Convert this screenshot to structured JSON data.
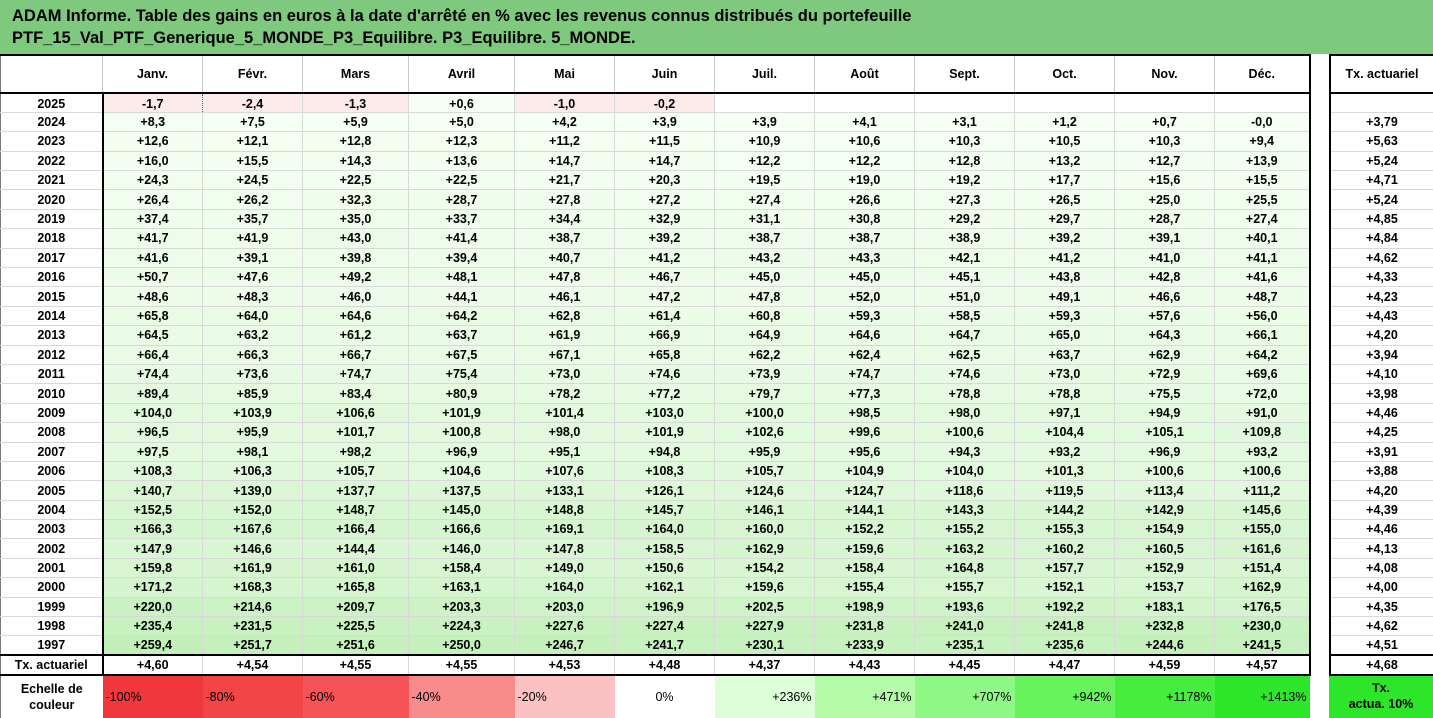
{
  "header": {
    "line1": "ADAM Informe. Table des gains en euros à la date d'arrêté en % avec les revenus connus distribués du portefeuille",
    "line2": "PTF_15_Val_PTF_Generique_5_MONDE_P3_Equilibre. P3_Equilibre. 5_MONDE."
  },
  "months": [
    "Janv.",
    "Févr.",
    "Mars",
    "Avril",
    "Mai",
    "Juin",
    "Juil.",
    "Août",
    "Sept.",
    "Oct.",
    "Nov.",
    "Déc."
  ],
  "right_header": "Tx. actuariel",
  "rows": [
    {
      "year": "2025",
      "values": [
        "-1,7",
        "-2,4",
        "-1,3",
        "+0,6",
        "-1,0",
        "-0,2",
        "",
        "",
        "",
        "",
        "",
        ""
      ],
      "rate": ""
    },
    {
      "year": "2024",
      "values": [
        "+8,3",
        "+7,5",
        "+5,9",
        "+5,0",
        "+4,2",
        "+3,9",
        "+3,9",
        "+4,1",
        "+3,1",
        "+1,2",
        "+0,7",
        "-0,0"
      ],
      "rate": "+3,79"
    },
    {
      "year": "2023",
      "values": [
        "+12,6",
        "+12,1",
        "+12,8",
        "+12,3",
        "+11,2",
        "+11,5",
        "+10,9",
        "+10,6",
        "+10,3",
        "+10,5",
        "+10,3",
        "+9,4"
      ],
      "rate": "+5,63"
    },
    {
      "year": "2022",
      "values": [
        "+16,0",
        "+15,5",
        "+14,3",
        "+13,6",
        "+14,7",
        "+14,7",
        "+12,2",
        "+12,2",
        "+12,8",
        "+13,2",
        "+12,7",
        "+13,9"
      ],
      "rate": "+5,24"
    },
    {
      "year": "2021",
      "values": [
        "+24,3",
        "+24,5",
        "+22,5",
        "+22,5",
        "+21,7",
        "+20,3",
        "+19,5",
        "+19,0",
        "+19,2",
        "+17,7",
        "+15,6",
        "+15,5"
      ],
      "rate": "+4,71"
    },
    {
      "year": "2020",
      "values": [
        "+26,4",
        "+26,2",
        "+32,3",
        "+28,7",
        "+27,8",
        "+27,2",
        "+27,4",
        "+26,6",
        "+27,3",
        "+26,5",
        "+25,0",
        "+25,5"
      ],
      "rate": "+5,24"
    },
    {
      "year": "2019",
      "values": [
        "+37,4",
        "+35,7",
        "+35,0",
        "+33,7",
        "+34,4",
        "+32,9",
        "+31,1",
        "+30,8",
        "+29,2",
        "+29,7",
        "+28,7",
        "+27,4"
      ],
      "rate": "+4,85"
    },
    {
      "year": "2018",
      "values": [
        "+41,7",
        "+41,9",
        "+43,0",
        "+41,4",
        "+38,7",
        "+39,2",
        "+38,7",
        "+38,7",
        "+38,9",
        "+39,2",
        "+39,1",
        "+40,1"
      ],
      "rate": "+4,84"
    },
    {
      "year": "2017",
      "values": [
        "+41,6",
        "+39,1",
        "+39,8",
        "+39,4",
        "+40,7",
        "+41,2",
        "+43,2",
        "+43,3",
        "+42,1",
        "+41,2",
        "+41,0",
        "+41,1"
      ],
      "rate": "+4,62"
    },
    {
      "year": "2016",
      "values": [
        "+50,7",
        "+47,6",
        "+49,2",
        "+48,1",
        "+47,8",
        "+46,7",
        "+45,0",
        "+45,0",
        "+45,1",
        "+43,8",
        "+42,8",
        "+41,6"
      ],
      "rate": "+4,33"
    },
    {
      "year": "2015",
      "values": [
        "+48,6",
        "+48,3",
        "+46,0",
        "+44,1",
        "+46,1",
        "+47,2",
        "+47,8",
        "+52,0",
        "+51,0",
        "+49,1",
        "+46,6",
        "+48,7"
      ],
      "rate": "+4,23"
    },
    {
      "year": "2014",
      "values": [
        "+65,8",
        "+64,0",
        "+64,6",
        "+64,2",
        "+62,8",
        "+61,4",
        "+60,8",
        "+59,3",
        "+58,5",
        "+59,3",
        "+57,6",
        "+56,0"
      ],
      "rate": "+4,43"
    },
    {
      "year": "2013",
      "values": [
        "+64,5",
        "+63,2",
        "+61,2",
        "+63,7",
        "+61,9",
        "+66,9",
        "+64,9",
        "+64,6",
        "+64,7",
        "+65,0",
        "+64,3",
        "+66,1"
      ],
      "rate": "+4,20"
    },
    {
      "year": "2012",
      "values": [
        "+66,4",
        "+66,3",
        "+66,7",
        "+67,5",
        "+67,1",
        "+65,8",
        "+62,2",
        "+62,4",
        "+62,5",
        "+63,7",
        "+62,9",
        "+64,2"
      ],
      "rate": "+3,94"
    },
    {
      "year": "2011",
      "values": [
        "+74,4",
        "+73,6",
        "+74,7",
        "+75,4",
        "+73,0",
        "+74,6",
        "+73,9",
        "+74,7",
        "+74,6",
        "+73,0",
        "+72,9",
        "+69,6"
      ],
      "rate": "+4,10"
    },
    {
      "year": "2010",
      "values": [
        "+89,4",
        "+85,9",
        "+83,4",
        "+80,9",
        "+78,2",
        "+77,2",
        "+79,7",
        "+77,3",
        "+78,8",
        "+78,8",
        "+75,5",
        "+72,0"
      ],
      "rate": "+3,98"
    },
    {
      "year": "2009",
      "values": [
        "+104,0",
        "+103,9",
        "+106,6",
        "+101,9",
        "+101,4",
        "+103,0",
        "+100,0",
        "+98,5",
        "+98,0",
        "+97,1",
        "+94,9",
        "+91,0"
      ],
      "rate": "+4,46"
    },
    {
      "year": "2008",
      "values": [
        "+96,5",
        "+95,9",
        "+101,7",
        "+100,8",
        "+98,0",
        "+101,9",
        "+102,6",
        "+99,6",
        "+100,6",
        "+104,4",
        "+105,1",
        "+109,8"
      ],
      "rate": "+4,25"
    },
    {
      "year": "2007",
      "values": [
        "+97,5",
        "+98,1",
        "+98,2",
        "+96,9",
        "+95,1",
        "+94,8",
        "+95,9",
        "+95,6",
        "+94,3",
        "+93,2",
        "+96,9",
        "+93,2"
      ],
      "rate": "+3,91"
    },
    {
      "year": "2006",
      "values": [
        "+108,3",
        "+106,3",
        "+105,7",
        "+104,6",
        "+107,6",
        "+108,3",
        "+105,7",
        "+104,9",
        "+104,0",
        "+101,3",
        "+100,6",
        "+100,6"
      ],
      "rate": "+3,88"
    },
    {
      "year": "2005",
      "values": [
        "+140,7",
        "+139,0",
        "+137,7",
        "+137,5",
        "+133,1",
        "+126,1",
        "+124,6",
        "+124,7",
        "+118,6",
        "+119,5",
        "+113,4",
        "+111,2"
      ],
      "rate": "+4,20"
    },
    {
      "year": "2004",
      "values": [
        "+152,5",
        "+152,0",
        "+148,7",
        "+145,0",
        "+148,8",
        "+145,7",
        "+146,1",
        "+144,1",
        "+143,3",
        "+144,2",
        "+142,9",
        "+145,6"
      ],
      "rate": "+4,39"
    },
    {
      "year": "2003",
      "values": [
        "+166,3",
        "+167,6",
        "+166,4",
        "+166,6",
        "+169,1",
        "+164,0",
        "+160,0",
        "+152,2",
        "+155,2",
        "+155,3",
        "+154,9",
        "+155,0"
      ],
      "rate": "+4,46"
    },
    {
      "year": "2002",
      "values": [
        "+147,9",
        "+146,6",
        "+144,4",
        "+146,0",
        "+147,8",
        "+158,5",
        "+162,9",
        "+159,6",
        "+163,2",
        "+160,2",
        "+160,5",
        "+161,6"
      ],
      "rate": "+4,13"
    },
    {
      "year": "2001",
      "values": [
        "+159,8",
        "+161,9",
        "+161,0",
        "+158,4",
        "+149,0",
        "+150,6",
        "+154,2",
        "+158,4",
        "+164,8",
        "+157,7",
        "+152,9",
        "+151,4"
      ],
      "rate": "+4,08"
    },
    {
      "year": "2000",
      "values": [
        "+171,2",
        "+168,3",
        "+165,8",
        "+163,1",
        "+164,0",
        "+162,1",
        "+159,6",
        "+155,4",
        "+155,7",
        "+152,1",
        "+153,7",
        "+162,9"
      ],
      "rate": "+4,00"
    },
    {
      "year": "1999",
      "values": [
        "+220,0",
        "+214,6",
        "+209,7",
        "+203,3",
        "+203,0",
        "+196,9",
        "+202,5",
        "+198,9",
        "+193,6",
        "+192,2",
        "+183,1",
        "+176,5"
      ],
      "rate": "+4,35"
    },
    {
      "year": "1998",
      "values": [
        "+235,4",
        "+231,5",
        "+225,5",
        "+224,3",
        "+227,6",
        "+227,4",
        "+227,9",
        "+231,8",
        "+241,0",
        "+241,8",
        "+232,8",
        "+230,0"
      ],
      "rate": "+4,62"
    },
    {
      "year": "1997",
      "values": [
        "+259,4",
        "+251,7",
        "+251,6",
        "+250,0",
        "+246,7",
        "+241,7",
        "+230,1",
        "+233,9",
        "+235,1",
        "+235,6",
        "+244,6",
        "+241,5"
      ],
      "rate": "+4,51"
    }
  ],
  "bottom_row": {
    "label": "Tx. actuariel",
    "values": [
      "+4,60",
      "+4,54",
      "+4,55",
      "+4,55",
      "+4,53",
      "+4,48",
      "+4,37",
      "+4,43",
      "+4,45",
      "+4,47",
      "+4,59",
      "+4,57"
    ],
    "rate": "+4,68"
  },
  "scale": {
    "label_line1": "Echelle de",
    "label_line2": "couleur",
    "items": [
      {
        "text": "-100%",
        "color": "#f0383c",
        "align": "left"
      },
      {
        "text": "-80%",
        "color": "#f34446",
        "align": "left"
      },
      {
        "text": "-60%",
        "color": "#f65356",
        "align": "left"
      },
      {
        "text": "-40%",
        "color": "#f98b8d",
        "align": "left"
      },
      {
        "text": "-20%",
        "color": "#fcc2c3",
        "align": "left"
      },
      {
        "text": "0%",
        "color": "#ffffff",
        "align": "center"
      },
      {
        "text": "+236%",
        "color": "#ddffd8",
        "align": "right"
      },
      {
        "text": "+471%",
        "color": "#b4fba8",
        "align": "right"
      },
      {
        "text": "+707%",
        "color": "#8ef884",
        "align": "right"
      },
      {
        "text": "+942%",
        "color": "#66f35c",
        "align": "right"
      },
      {
        "text": "+1178%",
        "color": "#45ee3c",
        "align": "right"
      },
      {
        "text": "+1413%",
        "color": "#2ee629",
        "align": "right"
      }
    ],
    "right_line1": "Tx.",
    "right_line2": "actua. 10%"
  },
  "colors": {
    "header_bg": "#7fc97f",
    "neg_light": "#fdeaea",
    "pos_max": "#c2efb9"
  }
}
